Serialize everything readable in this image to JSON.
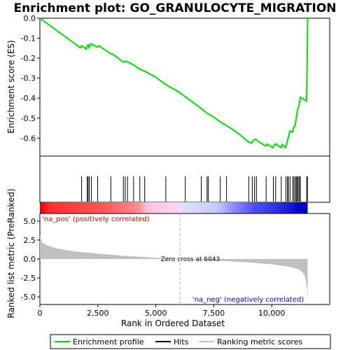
{
  "chart_data": {
    "type": "line",
    "title": "Enrichment plot: GO_GRANULOCYTE_MIGRATION",
    "es_panel": {
      "ylabel": "Enrichment score (ES)",
      "ylim": [
        -0.69,
        0.0
      ],
      "yticks": [
        0.0,
        -0.1,
        -0.2,
        -0.3,
        -0.4,
        -0.5,
        -0.6
      ],
      "ytick_labels": [
        "0.0",
        "-0.1",
        "-0.2",
        "-0.3",
        "-0.4",
        "-0.5",
        "-0.6"
      ],
      "series_color": "#00dd00",
      "points": [
        [
          0,
          0.0
        ],
        [
          1750,
          -0.148
        ],
        [
          1800,
          -0.138
        ],
        [
          2000,
          -0.155
        ],
        [
          2030,
          -0.14
        ],
        [
          2080,
          -0.132
        ],
        [
          2130,
          -0.147
        ],
        [
          2200,
          -0.128
        ],
        [
          2480,
          -0.145
        ],
        [
          2550,
          -0.138
        ],
        [
          3050,
          -0.178
        ],
        [
          3150,
          -0.18
        ],
        [
          3600,
          -0.22
        ],
        [
          3680,
          -0.215
        ],
        [
          3780,
          -0.218
        ],
        [
          4050,
          -0.235
        ],
        [
          4300,
          -0.255
        ],
        [
          4520,
          -0.265
        ],
        [
          5000,
          -0.295
        ],
        [
          5400,
          -0.33
        ],
        [
          6000,
          -0.37
        ],
        [
          6300,
          -0.395
        ],
        [
          7000,
          -0.455
        ],
        [
          7200,
          -0.475
        ],
        [
          7250,
          -0.478
        ],
        [
          7500,
          -0.495
        ],
        [
          7800,
          -0.52
        ],
        [
          8050,
          -0.537
        ],
        [
          8300,
          -0.555
        ],
        [
          8600,
          -0.58
        ],
        [
          9000,
          -0.62
        ],
        [
          9150,
          -0.625
        ],
        [
          9200,
          -0.61
        ],
        [
          9300,
          -0.605
        ],
        [
          9400,
          -0.615
        ],
        [
          9750,
          -0.64
        ],
        [
          9800,
          -0.63
        ],
        [
          10050,
          -0.648
        ],
        [
          10150,
          -0.628
        ],
        [
          10400,
          -0.648
        ],
        [
          10450,
          -0.632
        ],
        [
          10600,
          -0.648
        ],
        [
          10650,
          -0.625
        ],
        [
          10720,
          -0.595
        ],
        [
          10780,
          -0.565
        ],
        [
          10900,
          -0.57
        ],
        [
          10950,
          -0.545
        ],
        [
          11000,
          -0.54
        ],
        [
          11050,
          -0.505
        ],
        [
          11080,
          -0.48
        ],
        [
          11120,
          -0.455
        ],
        [
          11150,
          -0.45
        ],
        [
          11200,
          -0.422
        ],
        [
          11230,
          -0.395
        ],
        [
          11500,
          -0.415
        ],
        [
          11510,
          -0.36
        ],
        [
          11530,
          -0.215
        ],
        [
          11550,
          0.0
        ]
      ]
    },
    "hits": [
      1800,
      2040,
      2080,
      2130,
      2220,
      2490,
      3060,
      3600,
      3680,
      3780,
      4040,
      4310,
      4520,
      5430,
      6270,
      6960,
      7210,
      7260,
      7780,
      8050,
      9010,
      9160,
      9260,
      9340,
      9760,
      10070,
      10170,
      10410,
      10610,
      10680,
      10720,
      10790,
      10910,
      10960,
      11020,
      11060,
      11110,
      11140,
      11200,
      11230,
      11510,
      11540
    ],
    "metric_panel": {
      "ylabel": "Ranked list metric (PreRanked)",
      "xlabel": "Rank in Ordered Dataset",
      "ylim": [
        -6.0,
        6.0
      ],
      "yticks": [
        5.0,
        2.5,
        0.0,
        -2.5,
        -5.0
      ],
      "ytick_labels": [
        "5.0",
        "2.5",
        "0.0",
        "-2.5",
        "-5.0"
      ],
      "xlim": [
        0,
        12500
      ],
      "xticks": [
        0,
        2500,
        5000,
        7500,
        10000
      ],
      "xtick_labels": [
        "0",
        "2,500",
        "5,000",
        "7,500",
        "10,000"
      ],
      "n_genes": 11550,
      "zero_cross_rank": 6043,
      "zero_cross_label": "Zero cross at 6043",
      "pos_label": "'na_pos' (positively correlated)",
      "neg_label": "'na_neg' (negatively correlated)",
      "curve": [
        [
          0,
          3.1
        ],
        [
          100,
          2.2
        ],
        [
          300,
          1.8
        ],
        [
          700,
          1.4
        ],
        [
          1500,
          1.0
        ],
        [
          2500,
          0.7
        ],
        [
          3500,
          0.45
        ],
        [
          4500,
          0.25
        ],
        [
          5500,
          0.08
        ],
        [
          6043,
          0.0
        ],
        [
          7000,
          -0.12
        ],
        [
          8000,
          -0.28
        ],
        [
          9000,
          -0.45
        ],
        [
          10000,
          -0.7
        ],
        [
          10800,
          -1.05
        ],
        [
          11200,
          -1.4
        ],
        [
          11400,
          -2.0
        ],
        [
          11480,
          -3.0
        ],
        [
          11530,
          -4.2
        ],
        [
          11550,
          -5.6
        ]
      ]
    },
    "legend": {
      "items": [
        {
          "label": "Enrichment profile",
          "color": "#00dd00"
        },
        {
          "label": "Hits",
          "color": "#000000"
        },
        {
          "label": "Ranking metric scores",
          "color": "#c0c0c0"
        }
      ]
    }
  }
}
